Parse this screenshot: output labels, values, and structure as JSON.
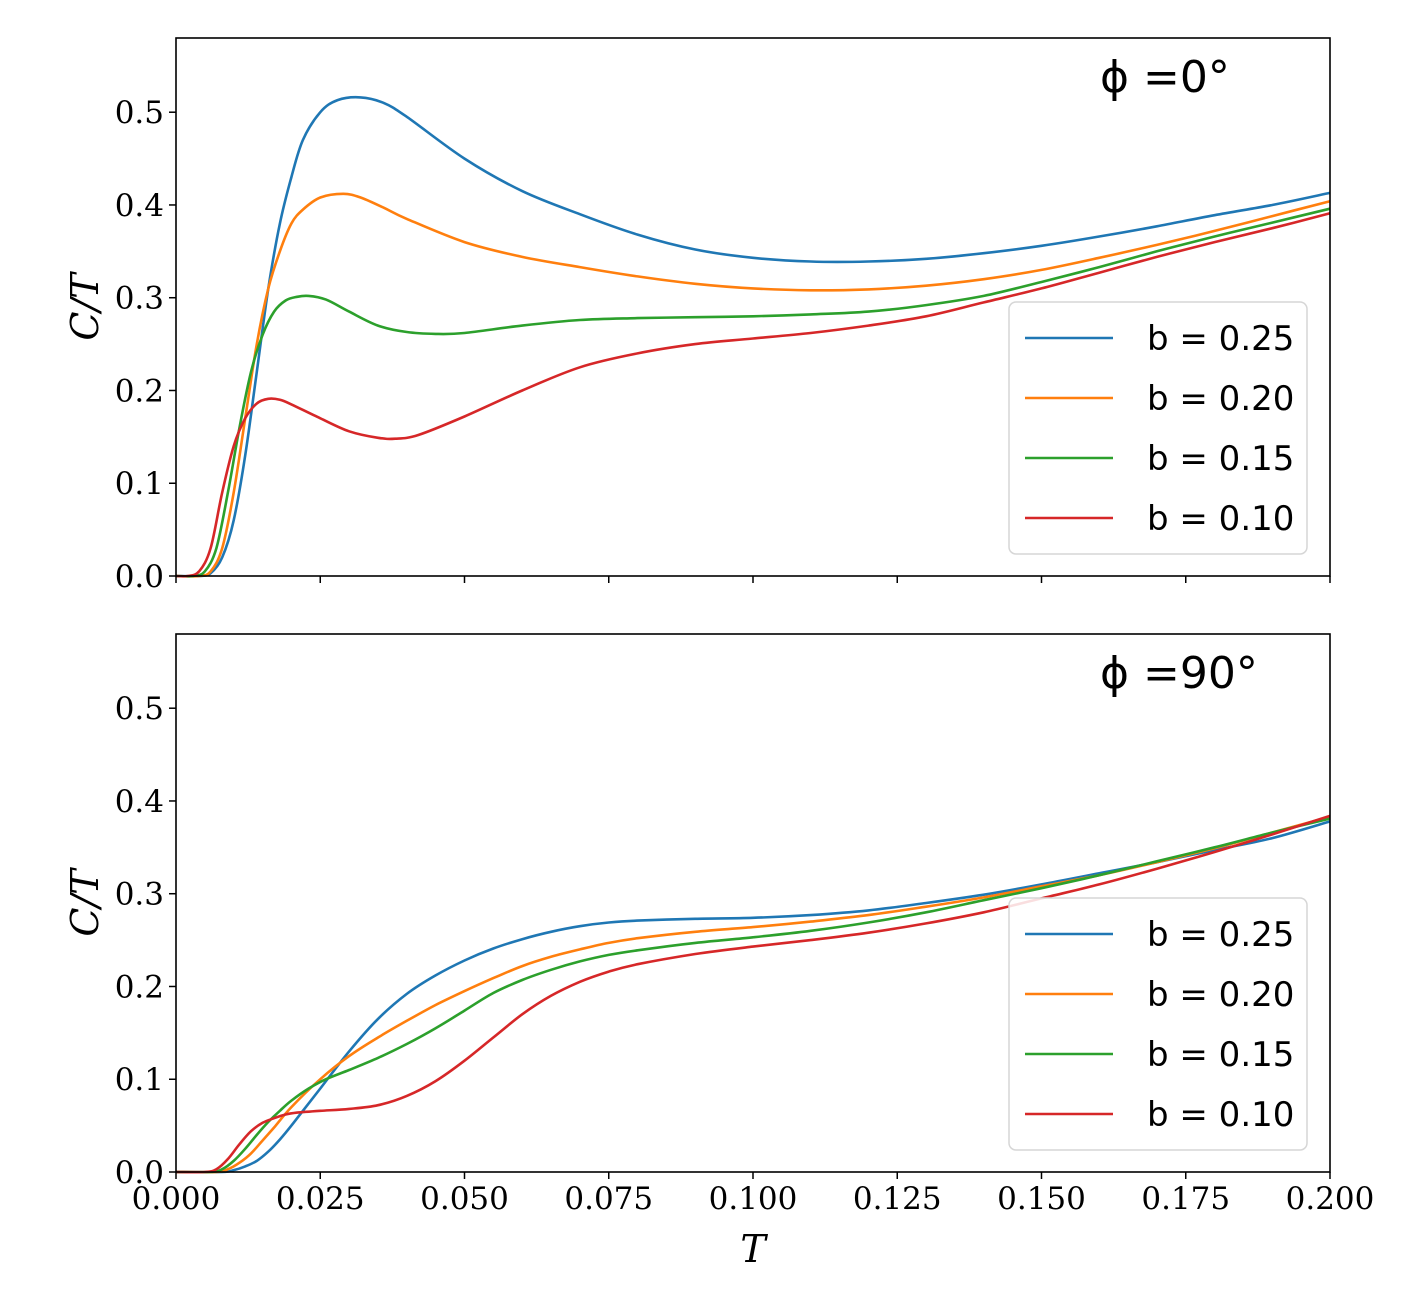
{
  "chart_data": [
    {
      "type": "line",
      "title": "ϕ =0°",
      "xlabel": "",
      "ylabel": "C/T",
      "xlim": [
        0.0,
        0.2
      ],
      "ylim": [
        0.0,
        0.58
      ],
      "xticks": [
        0.0,
        0.025,
        0.05,
        0.075,
        0.1,
        0.125,
        0.15,
        0.175,
        0.2
      ],
      "xtick_labels": [],
      "yticks": [
        0.0,
        0.1,
        0.2,
        0.3,
        0.4,
        0.5
      ],
      "ytick_labels": [
        "0.0",
        "0.1",
        "0.2",
        "0.3",
        "0.4",
        "0.5"
      ],
      "legend_position": "center-right",
      "series": [
        {
          "name": "b = 0.25",
          "color": "#1f77b4",
          "x": [
            0.0,
            0.004,
            0.006,
            0.008,
            0.01,
            0.012,
            0.014,
            0.016,
            0.018,
            0.02,
            0.022,
            0.025,
            0.028,
            0.032,
            0.036,
            0.04,
            0.05,
            0.06,
            0.07,
            0.08,
            0.09,
            0.1,
            0.11,
            0.12,
            0.13,
            0.14,
            0.15,
            0.16,
            0.17,
            0.18,
            0.19,
            0.2
          ],
          "y": [
            0.0,
            0.0,
            0.003,
            0.02,
            0.06,
            0.13,
            0.22,
            0.31,
            0.38,
            0.43,
            0.47,
            0.5,
            0.513,
            0.516,
            0.51,
            0.495,
            0.45,
            0.415,
            0.39,
            0.368,
            0.352,
            0.343,
            0.339,
            0.339,
            0.342,
            0.348,
            0.356,
            0.366,
            0.377,
            0.389,
            0.4,
            0.413
          ]
        },
        {
          "name": "b = 0.20",
          "color": "#ff7f0e",
          "x": [
            0.0,
            0.004,
            0.006,
            0.008,
            0.01,
            0.012,
            0.014,
            0.016,
            0.018,
            0.02,
            0.022,
            0.025,
            0.029,
            0.032,
            0.036,
            0.04,
            0.05,
            0.06,
            0.07,
            0.08,
            0.09,
            0.1,
            0.11,
            0.12,
            0.13,
            0.14,
            0.15,
            0.16,
            0.17,
            0.18,
            0.19,
            0.2
          ],
          "y": [
            0.0,
            0.0,
            0.005,
            0.03,
            0.09,
            0.17,
            0.25,
            0.31,
            0.35,
            0.38,
            0.395,
            0.408,
            0.412,
            0.408,
            0.397,
            0.385,
            0.36,
            0.344,
            0.333,
            0.323,
            0.315,
            0.31,
            0.308,
            0.309,
            0.313,
            0.32,
            0.33,
            0.343,
            0.357,
            0.372,
            0.388,
            0.404
          ]
        },
        {
          "name": "b = 0.15",
          "color": "#2ca02c",
          "x": [
            0.0,
            0.003,
            0.005,
            0.007,
            0.009,
            0.011,
            0.013,
            0.015,
            0.017,
            0.019,
            0.021,
            0.023,
            0.026,
            0.03,
            0.035,
            0.04,
            0.045,
            0.05,
            0.06,
            0.07,
            0.08,
            0.09,
            0.1,
            0.11,
            0.12,
            0.13,
            0.14,
            0.15,
            0.16,
            0.17,
            0.18,
            0.19,
            0.2
          ],
          "y": [
            0.0,
            0.0,
            0.005,
            0.03,
            0.09,
            0.16,
            0.22,
            0.26,
            0.285,
            0.297,
            0.301,
            0.302,
            0.298,
            0.285,
            0.27,
            0.263,
            0.261,
            0.262,
            0.27,
            0.276,
            0.278,
            0.279,
            0.28,
            0.282,
            0.285,
            0.292,
            0.302,
            0.317,
            0.333,
            0.35,
            0.366,
            0.381,
            0.396
          ]
        },
        {
          "name": "b = 0.10",
          "color": "#d62728",
          "x": [
            0.0,
            0.002,
            0.004,
            0.006,
            0.008,
            0.01,
            0.012,
            0.014,
            0.016,
            0.018,
            0.02,
            0.025,
            0.03,
            0.035,
            0.038,
            0.042,
            0.05,
            0.06,
            0.07,
            0.08,
            0.09,
            0.1,
            0.11,
            0.12,
            0.13,
            0.14,
            0.15,
            0.16,
            0.17,
            0.18,
            0.19,
            0.2
          ],
          "y": [
            0.0,
            0.0,
            0.005,
            0.03,
            0.09,
            0.14,
            0.17,
            0.186,
            0.191,
            0.19,
            0.185,
            0.17,
            0.156,
            0.149,
            0.148,
            0.152,
            0.172,
            0.2,
            0.225,
            0.24,
            0.25,
            0.256,
            0.262,
            0.27,
            0.28,
            0.295,
            0.31,
            0.327,
            0.344,
            0.36,
            0.375,
            0.391
          ]
        }
      ]
    },
    {
      "type": "line",
      "title": "ϕ =90°",
      "xlabel": "T",
      "ylabel": "C/T",
      "xlim": [
        0.0,
        0.2
      ],
      "ylim": [
        0.0,
        0.58
      ],
      "xticks": [
        0.0,
        0.025,
        0.05,
        0.075,
        0.1,
        0.125,
        0.15,
        0.175,
        0.2
      ],
      "xtick_labels": [
        "0.000",
        "0.025",
        "0.050",
        "0.075",
        "0.100",
        "0.125",
        "0.150",
        "0.175",
        "0.200"
      ],
      "yticks": [
        0.0,
        0.1,
        0.2,
        0.3,
        0.4,
        0.5
      ],
      "ytick_labels": [
        "0.0",
        "0.1",
        "0.2",
        "0.3",
        "0.4",
        "0.5"
      ],
      "legend_position": "center-right",
      "series": [
        {
          "name": "b = 0.25",
          "color": "#1f77b4",
          "x": [
            0.0,
            0.008,
            0.01,
            0.012,
            0.014,
            0.016,
            0.018,
            0.02,
            0.022,
            0.025,
            0.03,
            0.035,
            0.04,
            0.045,
            0.05,
            0.055,
            0.06,
            0.065,
            0.07,
            0.075,
            0.08,
            0.09,
            0.1,
            0.11,
            0.12,
            0.13,
            0.14,
            0.15,
            0.16,
            0.17,
            0.18,
            0.19,
            0.2
          ],
          "y": [
            0.0,
            0.0,
            0.002,
            0.006,
            0.012,
            0.022,
            0.035,
            0.05,
            0.066,
            0.09,
            0.13,
            0.165,
            0.192,
            0.212,
            0.228,
            0.241,
            0.251,
            0.259,
            0.265,
            0.269,
            0.271,
            0.273,
            0.274,
            0.277,
            0.282,
            0.29,
            0.299,
            0.31,
            0.322,
            0.334,
            0.347,
            0.36,
            0.378
          ]
        },
        {
          "name": "b = 0.20",
          "color": "#ff7f0e",
          "x": [
            0.0,
            0.007,
            0.009,
            0.011,
            0.013,
            0.015,
            0.017,
            0.02,
            0.025,
            0.03,
            0.035,
            0.04,
            0.045,
            0.05,
            0.055,
            0.06,
            0.065,
            0.07,
            0.075,
            0.08,
            0.09,
            0.1,
            0.11,
            0.12,
            0.13,
            0.14,
            0.15,
            0.16,
            0.17,
            0.18,
            0.19,
            0.2
          ],
          "y": [
            0.0,
            0.0,
            0.003,
            0.01,
            0.02,
            0.034,
            0.048,
            0.07,
            0.1,
            0.125,
            0.145,
            0.163,
            0.18,
            0.195,
            0.209,
            0.222,
            0.232,
            0.24,
            0.247,
            0.252,
            0.259,
            0.264,
            0.27,
            0.277,
            0.286,
            0.296,
            0.308,
            0.32,
            0.334,
            0.349,
            0.366,
            0.383
          ]
        },
        {
          "name": "b = 0.15",
          "color": "#2ca02c",
          "x": [
            0.0,
            0.006,
            0.008,
            0.01,
            0.012,
            0.014,
            0.016,
            0.018,
            0.02,
            0.023,
            0.026,
            0.03,
            0.035,
            0.04,
            0.045,
            0.05,
            0.055,
            0.06,
            0.065,
            0.07,
            0.075,
            0.08,
            0.09,
            0.1,
            0.11,
            0.12,
            0.13,
            0.14,
            0.15,
            0.16,
            0.17,
            0.18,
            0.19,
            0.2
          ],
          "y": [
            0.0,
            0.0,
            0.003,
            0.012,
            0.025,
            0.04,
            0.054,
            0.066,
            0.077,
            0.09,
            0.1,
            0.11,
            0.123,
            0.138,
            0.155,
            0.174,
            0.193,
            0.207,
            0.218,
            0.227,
            0.234,
            0.239,
            0.247,
            0.253,
            0.26,
            0.269,
            0.28,
            0.293,
            0.306,
            0.32,
            0.335,
            0.35,
            0.366,
            0.381
          ]
        },
        {
          "name": "b = 0.10",
          "color": "#d62728",
          "x": [
            0.0,
            0.005,
            0.007,
            0.009,
            0.011,
            0.013,
            0.015,
            0.017,
            0.019,
            0.021,
            0.025,
            0.03,
            0.035,
            0.04,
            0.045,
            0.05,
            0.055,
            0.06,
            0.065,
            0.07,
            0.075,
            0.08,
            0.09,
            0.1,
            0.11,
            0.12,
            0.13,
            0.14,
            0.15,
            0.16,
            0.17,
            0.18,
            0.19,
            0.2
          ],
          "y": [
            0.0,
            0.0,
            0.003,
            0.014,
            0.03,
            0.044,
            0.053,
            0.058,
            0.062,
            0.064,
            0.066,
            0.068,
            0.072,
            0.082,
            0.098,
            0.12,
            0.145,
            0.17,
            0.19,
            0.205,
            0.216,
            0.224,
            0.235,
            0.243,
            0.25,
            0.258,
            0.268,
            0.28,
            0.295,
            0.31,
            0.327,
            0.345,
            0.364,
            0.384
          ]
        }
      ]
    }
  ]
}
